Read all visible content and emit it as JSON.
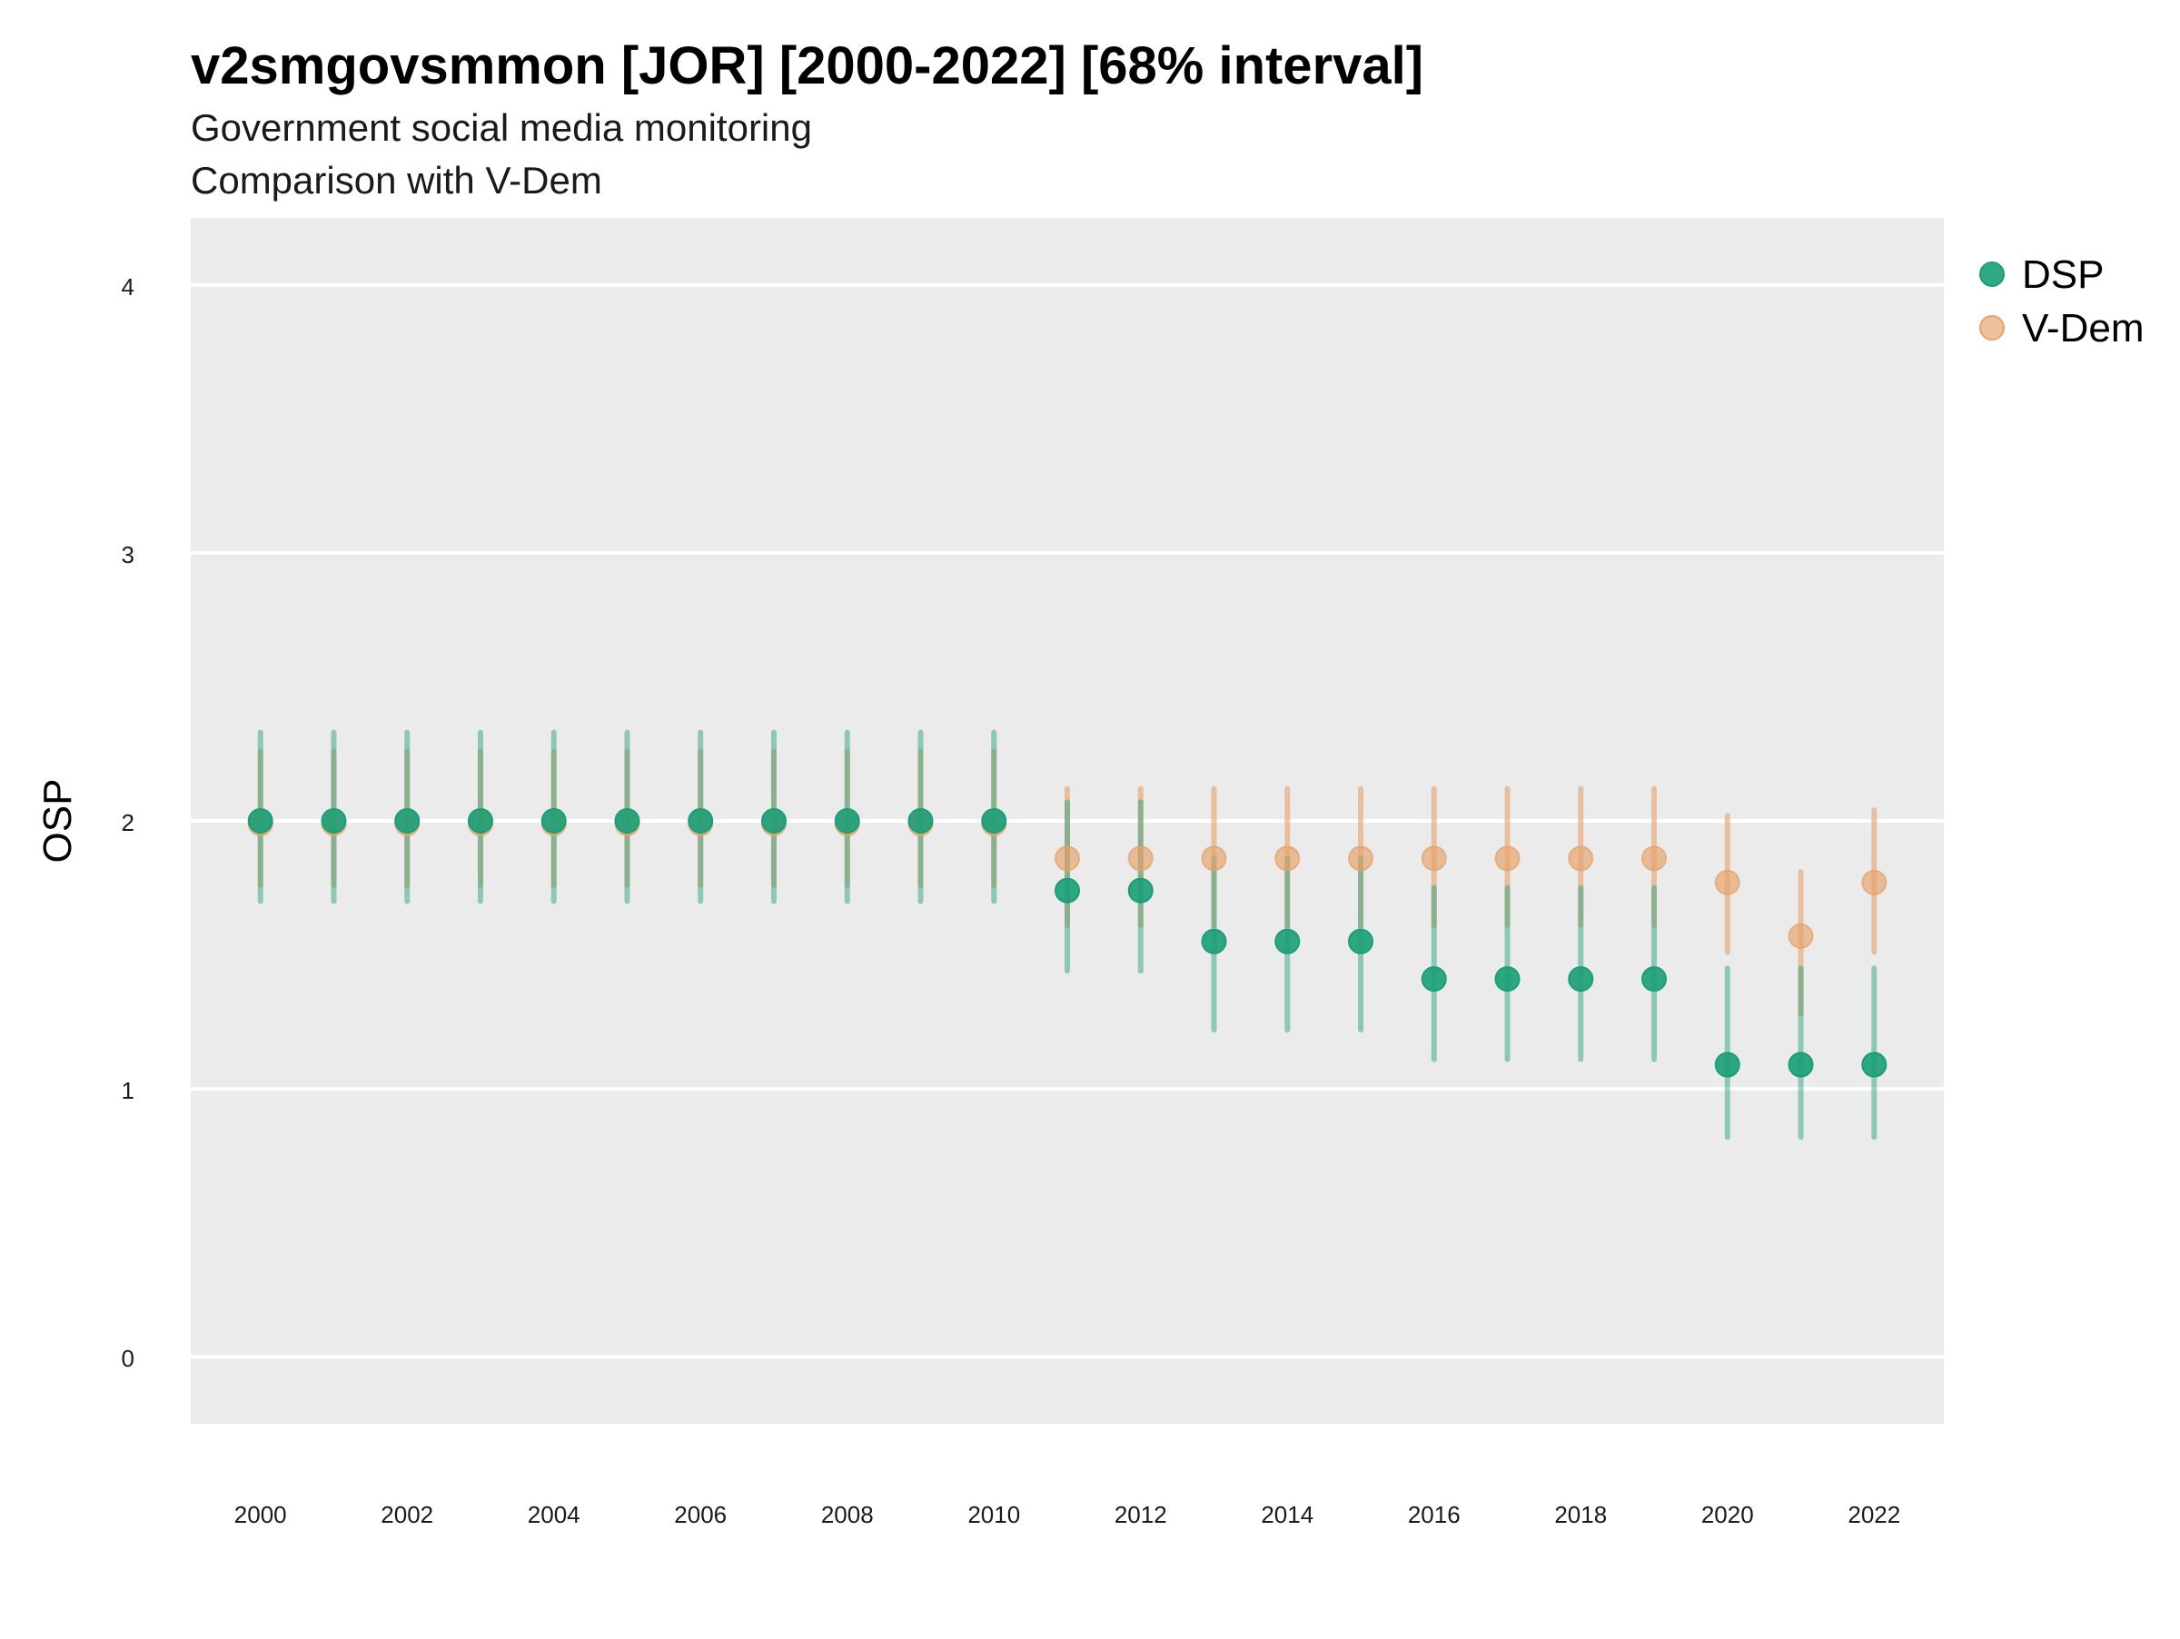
{
  "chart_data": {
    "type": "scatter",
    "title": "v2smgovsmmon [JOR] [2000-2022] [68% interval]",
    "subtitle_lines": [
      "Government social media monitoring",
      "Comparison with V-Dem"
    ],
    "ylabel": "OSP",
    "xlabel": "",
    "xlim": [
      1999.05,
      2022.95
    ],
    "ylim": [
      -0.25,
      4.25
    ],
    "y_ticks": [
      "0",
      "1",
      "2",
      "3",
      "4"
    ],
    "x_ticks": [
      "2000",
      "2002",
      "2004",
      "2006",
      "2008",
      "2010",
      "2012",
      "2014",
      "2016",
      "2018",
      "2020",
      "2022"
    ],
    "grid": true,
    "legend_position": "right-top",
    "x": [
      2000,
      2001,
      2002,
      2003,
      2004,
      2005,
      2006,
      2007,
      2008,
      2009,
      2010,
      2011,
      2012,
      2013,
      2014,
      2015,
      2016,
      2017,
      2018,
      2019,
      2020,
      2021,
      2022
    ],
    "series": [
      {
        "name": "V-Dem",
        "color": "#E6A16A",
        "point_alpha": 0.65,
        "interval_alpha": 0.6,
        "values": [
          1.99,
          1.99,
          1.99,
          1.99,
          1.99,
          1.99,
          1.99,
          1.99,
          1.99,
          1.99,
          1.99,
          1.86,
          1.86,
          1.86,
          1.86,
          1.86,
          1.86,
          1.86,
          1.86,
          1.86,
          1.77,
          1.57,
          1.77
        ],
        "lower": [
          1.76,
          1.76,
          1.76,
          1.76,
          1.76,
          1.76,
          1.76,
          1.76,
          1.76,
          1.76,
          1.76,
          1.61,
          1.61,
          1.61,
          1.61,
          1.61,
          1.61,
          1.61,
          1.61,
          1.61,
          1.51,
          1.28,
          1.51
        ],
        "upper": [
          2.26,
          2.26,
          2.26,
          2.26,
          2.26,
          2.26,
          2.26,
          2.26,
          2.26,
          2.26,
          2.26,
          2.12,
          2.12,
          2.12,
          2.12,
          2.12,
          2.12,
          2.12,
          2.12,
          2.12,
          2.02,
          1.81,
          2.04
        ]
      },
      {
        "name": "DSP",
        "color": "#1B9E77",
        "point_alpha": 0.9,
        "interval_alpha": 0.45,
        "values": [
          2.0,
          2.0,
          2.0,
          2.0,
          2.0,
          2.0,
          2.0,
          2.0,
          2.0,
          2.0,
          2.0,
          1.74,
          1.74,
          1.55,
          1.55,
          1.55,
          1.41,
          1.41,
          1.41,
          1.41,
          1.09,
          1.09,
          1.09
        ],
        "lower": [
          1.7,
          1.7,
          1.7,
          1.7,
          1.7,
          1.7,
          1.7,
          1.7,
          1.7,
          1.7,
          1.7,
          1.44,
          1.44,
          1.22,
          1.22,
          1.22,
          1.11,
          1.11,
          1.11,
          1.11,
          0.82,
          0.82,
          0.82
        ],
        "upper": [
          2.33,
          2.33,
          2.33,
          2.33,
          2.33,
          2.33,
          2.33,
          2.33,
          2.33,
          2.33,
          2.33,
          2.07,
          2.07,
          1.86,
          1.86,
          1.86,
          1.75,
          1.75,
          1.75,
          1.75,
          1.45,
          1.45,
          1.45
        ]
      }
    ],
    "legend_order": [
      "DSP",
      "V-Dem"
    ]
  }
}
